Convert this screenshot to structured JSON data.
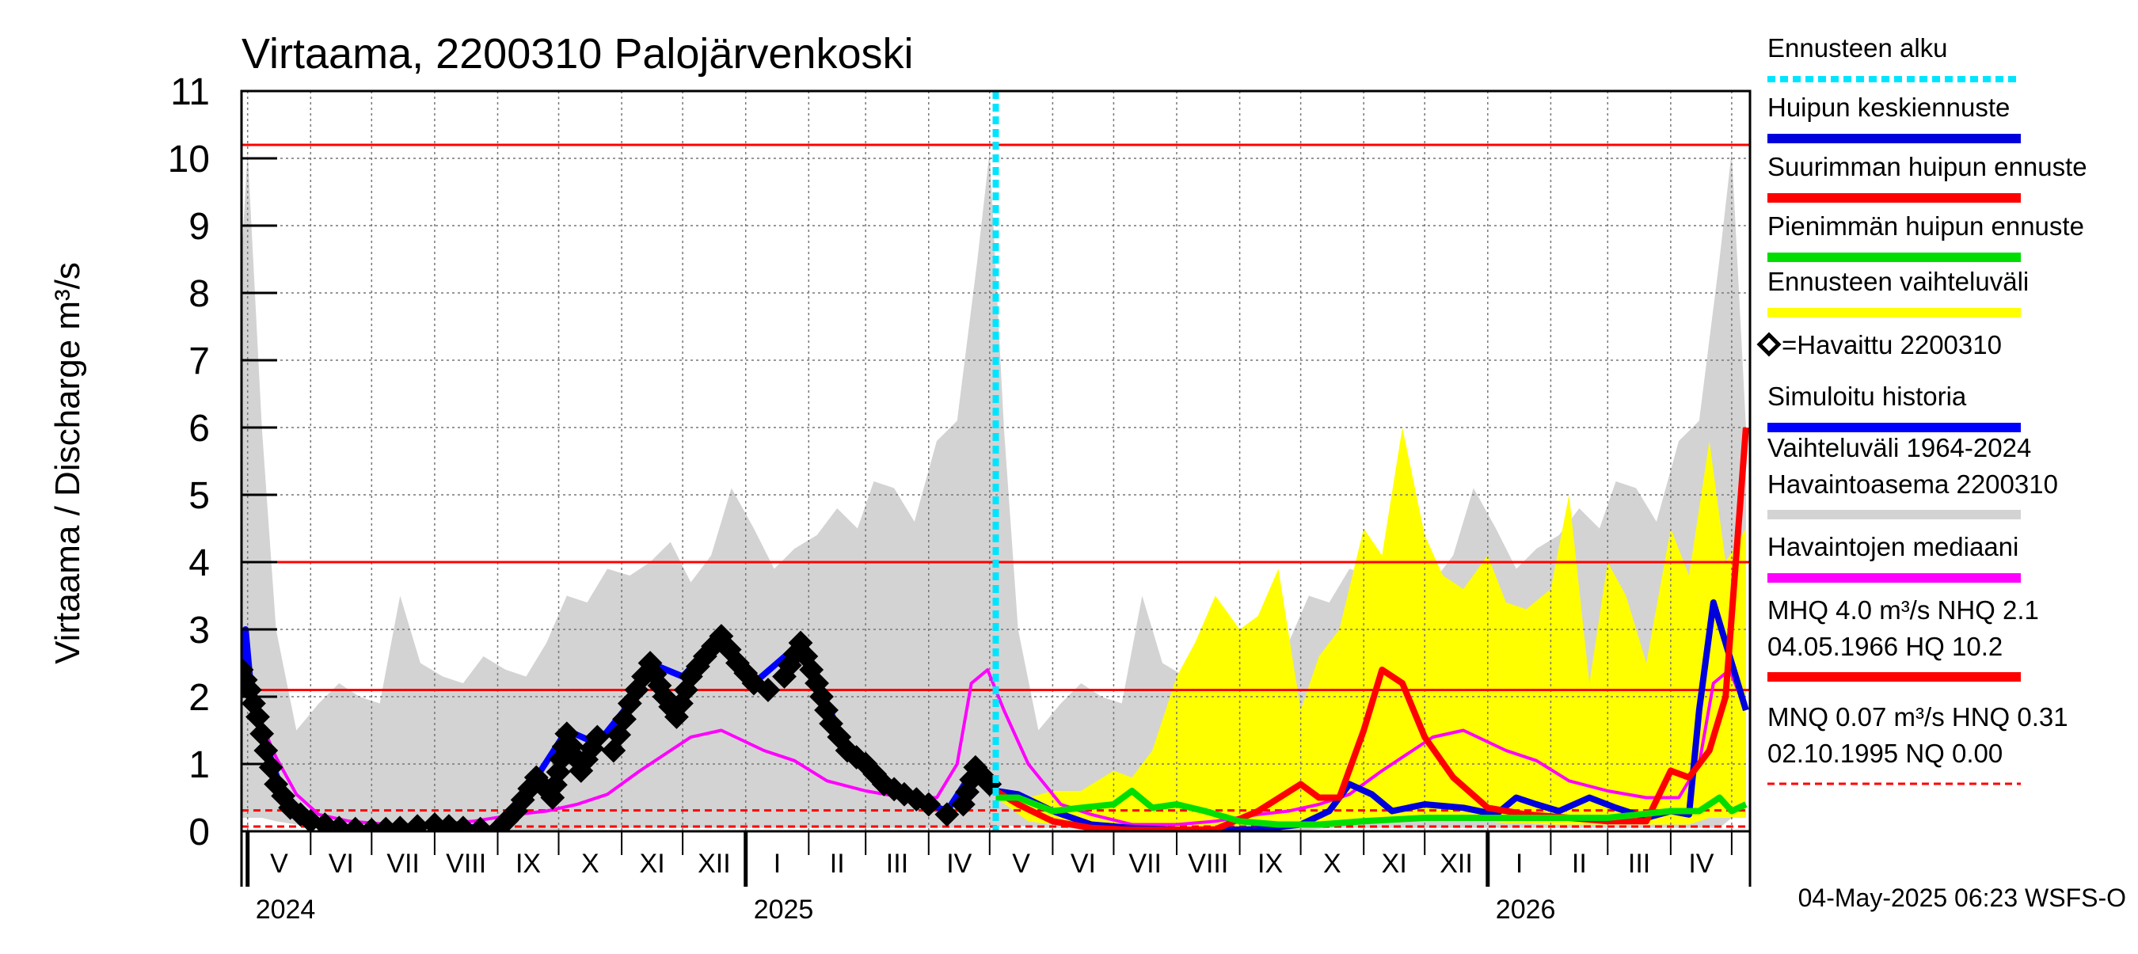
{
  "chart_data": {
    "type": "line",
    "title": "Virtaama, 2200310 Palojärvenkoski",
    "ylabel": "Virtaama / Discharge    m³/s",
    "ylim": [
      0,
      11
    ],
    "yticks": [
      0,
      1,
      2,
      3,
      4,
      5,
      6,
      7,
      8,
      9,
      10,
      11
    ],
    "xlim": [
      "2024-04-28",
      "2026-05-10"
    ],
    "grid": true,
    "months": [
      "V",
      "VI",
      "VII",
      "VIII",
      "IX",
      "X",
      "XI",
      "XII",
      "I",
      "II",
      "III",
      "IV",
      "V",
      "VI",
      "VII",
      "VIII",
      "IX",
      "X",
      "XI",
      "XII",
      "I",
      "II",
      "III",
      "IV"
    ],
    "month_starts": [
      "2024-05-01",
      "2024-06-01",
      "2024-07-01",
      "2024-08-01",
      "2024-09-01",
      "2024-10-01",
      "2024-11-01",
      "2024-12-01",
      "2025-01-01",
      "2025-02-01",
      "2025-03-01",
      "2025-04-01",
      "2025-05-01",
      "2025-06-01",
      "2025-07-01",
      "2025-08-01",
      "2025-09-01",
      "2025-10-01",
      "2025-11-01",
      "2025-12-01",
      "2026-01-01",
      "2026-02-01",
      "2026-03-01",
      "2026-04-01",
      "2026-05-01"
    ],
    "years": [
      {
        "label": "2024",
        "date": "2024-05-01"
      },
      {
        "label": "2025",
        "date": "2025-01-01"
      },
      {
        "label": "2026",
        "date": "2026-01-01"
      }
    ],
    "forecast_start": "2025-05-04",
    "reference_lines": [
      {
        "name": "HQ",
        "value": 10.2,
        "style": "solid"
      },
      {
        "name": "MHQ",
        "value": 4.0,
        "style": "solid"
      },
      {
        "name": "NHQ",
        "value": 2.1,
        "style": "solid"
      },
      {
        "name": "HNQ",
        "value": 0.31,
        "style": "dashed"
      },
      {
        "name": "MNQ",
        "value": 0.07,
        "style": "dashed"
      },
      {
        "name": "NQ",
        "value": 0.0,
        "style": "dashed"
      }
    ],
    "series": [
      {
        "name": "Vaihteluväli 1964-2024 Havaintoasema 2200310",
        "kind": "band",
        "color": "#d3d3d3",
        "x": [
          "2024-04-28",
          "2024-05-01",
          "2024-05-08",
          "2024-05-15",
          "2024-05-25",
          "2024-06-05",
          "2024-06-15",
          "2024-06-25",
          "2024-07-05",
          "2024-07-15",
          "2024-07-25",
          "2024-08-05",
          "2024-08-15",
          "2024-08-25",
          "2024-09-05",
          "2024-09-15",
          "2024-09-25",
          "2024-10-05",
          "2024-10-15",
          "2024-10-25",
          "2024-11-05",
          "2024-11-15",
          "2024-11-25",
          "2024-12-05",
          "2024-12-15",
          "2024-12-25",
          "2025-01-05",
          "2025-01-15",
          "2025-01-25",
          "2025-02-05",
          "2025-02-15",
          "2025-02-25",
          "2025-03-05",
          "2025-03-15",
          "2025-03-25",
          "2025-04-05",
          "2025-04-15",
          "2025-04-25",
          "2025-05-01",
          "2025-05-08",
          "2025-05-15",
          "2025-05-25",
          "2025-06-05",
          "2025-06-15",
          "2025-06-25",
          "2025-07-05",
          "2025-07-15",
          "2025-07-25",
          "2025-08-05",
          "2025-08-15",
          "2025-08-25",
          "2025-09-05",
          "2025-09-15",
          "2025-09-25",
          "2025-10-05",
          "2025-10-15",
          "2025-10-25",
          "2025-11-05",
          "2025-11-15",
          "2025-11-25",
          "2025-12-05",
          "2025-12-15",
          "2025-12-25",
          "2026-01-05",
          "2026-01-15",
          "2026-01-25",
          "2026-02-05",
          "2026-02-15",
          "2026-02-25",
          "2026-03-05",
          "2026-03-15",
          "2026-03-25",
          "2026-04-05",
          "2026-04-15",
          "2026-04-25",
          "2026-05-01",
          "2026-05-08"
        ],
        "low": [
          0.2,
          0.2,
          0.2,
          0.15,
          0.1,
          0.05,
          0.03,
          0.02,
          0.0,
          0.0,
          0.0,
          0.0,
          0.0,
          0.0,
          0.0,
          0.0,
          0.02,
          0.02,
          0.05,
          0.05,
          0.05,
          0.05,
          0.05,
          0.05,
          0.05,
          0.05,
          0.05,
          0.05,
          0.05,
          0.05,
          0.05,
          0.05,
          0.05,
          0.05,
          0.05,
          0.05,
          0.05,
          0.05,
          0.05,
          0.08,
          0.08,
          0.05,
          0.05,
          0.03,
          0.03,
          0.02,
          0.0,
          0.0,
          0.0,
          0.0,
          0.0,
          0.0,
          0.02,
          0.02,
          0.02,
          0.05,
          0.05,
          0.05,
          0.05,
          0.05,
          0.05,
          0.05,
          0.05,
          0.05,
          0.05,
          0.05,
          0.05,
          0.05,
          0.05,
          0.05,
          0.05,
          0.05,
          0.05,
          0.05,
          0.05,
          0.2,
          0.2
        ],
        "high": [
          8.5,
          10.1,
          6.0,
          3.0,
          1.5,
          1.9,
          2.2,
          2.0,
          1.9,
          3.5,
          2.5,
          2.3,
          2.2,
          2.6,
          2.4,
          2.3,
          2.8,
          3.5,
          3.4,
          3.9,
          3.8,
          4.0,
          4.3,
          3.7,
          4.1,
          5.1,
          4.5,
          3.9,
          4.2,
          4.4,
          4.8,
          4.5,
          5.2,
          5.1,
          4.6,
          5.8,
          6.1,
          8.5,
          10.1,
          6.0,
          3.0,
          1.5,
          1.9,
          2.2,
          2.0,
          1.9,
          3.5,
          2.5,
          2.3,
          2.2,
          2.6,
          2.4,
          2.3,
          2.8,
          3.5,
          3.4,
          3.9,
          3.8,
          4.0,
          4.3,
          3.7,
          4.1,
          5.1,
          4.5,
          3.9,
          4.2,
          4.4,
          4.8,
          4.5,
          5.2,
          5.1,
          4.6,
          5.8,
          6.1,
          8.5,
          10.1,
          6.0
        ]
      },
      {
        "name": "Ennusteen vaihteluväli",
        "kind": "band",
        "color": "#ffff00",
        "x": [
          "2025-05-04",
          "2025-05-20",
          "2025-06-01",
          "2025-06-15",
          "2025-07-01",
          "2025-07-10",
          "2025-07-20",
          "2025-08-01",
          "2025-08-10",
          "2025-08-20",
          "2025-09-01",
          "2025-09-10",
          "2025-09-20",
          "2025-10-01",
          "2025-10-10",
          "2025-10-20",
          "2025-11-01",
          "2025-11-10",
          "2025-11-20",
          "2025-12-01",
          "2025-12-10",
          "2025-12-20",
          "2026-01-01",
          "2026-01-10",
          "2026-01-20",
          "2026-02-01",
          "2026-02-10",
          "2026-02-20",
          "2026-03-01",
          "2026-03-10",
          "2026-03-20",
          "2026-04-01",
          "2026-04-10",
          "2026-04-20",
          "2026-04-28",
          "2026-05-08"
        ],
        "low": [
          0.5,
          0.15,
          0.1,
          0.1,
          0.05,
          0.05,
          0.05,
          0.02,
          0.02,
          0.02,
          0.02,
          0.02,
          0.02,
          0.05,
          0.1,
          0.1,
          0.15,
          0.15,
          0.15,
          0.15,
          0.15,
          0.15,
          0.15,
          0.12,
          0.12,
          0.1,
          0.1,
          0.1,
          0.1,
          0.1,
          0.1,
          0.1,
          0.1,
          0.2,
          0.2,
          0.2
        ],
        "high": [
          0.6,
          0.5,
          0.6,
          0.6,
          0.9,
          0.8,
          1.2,
          2.3,
          2.8,
          3.5,
          3.0,
          3.2,
          3.9,
          1.8,
          2.6,
          3.0,
          4.5,
          4.1,
          6.0,
          4.4,
          3.8,
          3.6,
          4.1,
          3.4,
          3.3,
          3.6,
          5.0,
          2.2,
          4.0,
          3.5,
          2.5,
          4.5,
          3.8,
          5.8,
          4.0,
          4.5
        ]
      },
      {
        "name": "Havaintojen mediaani",
        "kind": "line",
        "color": "#ff00ff",
        "x": [
          "2024-04-28",
          "2024-05-05",
          "2024-05-15",
          "2024-05-25",
          "2024-06-05",
          "2024-06-20",
          "2024-07-10",
          "2024-08-01",
          "2024-08-20",
          "2024-09-10",
          "2024-09-25",
          "2024-10-10",
          "2024-10-25",
          "2024-11-10",
          "2024-11-25",
          "2024-12-05",
          "2024-12-20",
          "2025-01-10",
          "2025-01-25",
          "2025-02-10",
          "2025-03-01",
          "2025-03-20",
          "2025-04-05",
          "2025-04-15",
          "2025-04-22",
          "2025-04-30",
          "2025-05-08",
          "2025-05-20",
          "2025-06-05",
          "2025-06-20",
          "2025-07-10",
          "2025-08-01",
          "2025-08-20",
          "2025-09-10",
          "2025-09-25",
          "2025-10-10",
          "2025-10-25",
          "2025-11-10",
          "2025-11-25",
          "2025-12-05",
          "2025-12-20",
          "2026-01-10",
          "2026-01-25",
          "2026-02-10",
          "2026-03-01",
          "2026-03-20",
          "2026-04-05",
          "2026-04-15",
          "2026-04-22",
          "2026-04-30",
          "2026-05-08"
        ],
        "y": [
          2.2,
          1.8,
          1.1,
          0.55,
          0.25,
          0.15,
          0.1,
          0.1,
          0.15,
          0.25,
          0.3,
          0.4,
          0.55,
          0.9,
          1.2,
          1.4,
          1.5,
          1.2,
          1.05,
          0.75,
          0.6,
          0.5,
          0.5,
          1.0,
          2.2,
          2.4,
          1.8,
          1.0,
          0.4,
          0.25,
          0.1,
          0.1,
          0.15,
          0.25,
          0.3,
          0.4,
          0.55,
          0.9,
          1.2,
          1.4,
          1.5,
          1.2,
          1.05,
          0.75,
          0.6,
          0.5,
          0.5,
          1.0,
          2.2,
          2.4,
          1.8
        ]
      },
      {
        "name": "=Havaittu 2200310",
        "kind": "markers",
        "color": "#000000",
        "x": [
          "2024-04-28",
          "2024-05-02",
          "2024-05-06",
          "2024-05-10",
          "2024-05-15",
          "2024-05-22",
          "2024-06-01",
          "2024-06-15",
          "2024-07-01",
          "2024-07-15",
          "2024-08-01",
          "2024-08-15",
          "2024-09-01",
          "2024-09-10",
          "2024-09-20",
          "2024-09-28",
          "2024-10-05",
          "2024-10-12",
          "2024-10-20",
          "2024-10-28",
          "2024-11-05",
          "2024-11-15",
          "2024-11-22",
          "2024-11-28",
          "2024-12-05",
          "2024-12-12",
          "2024-12-20",
          "2024-12-28",
          "2025-01-05",
          "2025-01-12",
          "2025-01-20",
          "2025-01-28",
          "2025-02-05",
          "2025-02-12",
          "2025-02-20",
          "2025-03-01",
          "2025-03-10",
          "2025-03-20",
          "2025-04-01",
          "2025-04-10",
          "2025-04-18",
          "2025-04-24",
          "2025-05-01"
        ],
        "y": [
          2.4,
          2.1,
          1.7,
          1.2,
          0.7,
          0.35,
          0.15,
          0.05,
          0.02,
          0.05,
          0.1,
          0.05,
          0.02,
          0.3,
          0.8,
          0.5,
          1.45,
          0.9,
          1.4,
          1.2,
          1.9,
          2.5,
          2.0,
          1.7,
          2.3,
          2.6,
          2.9,
          2.5,
          2.2,
          2.1,
          2.3,
          2.8,
          2.2,
          1.6,
          1.2,
          1.0,
          0.7,
          0.55,
          0.4,
          0.25,
          0.4,
          0.95,
          0.7
        ]
      },
      {
        "name": "Simuloitu historia",
        "kind": "line",
        "color": "#0000ff",
        "x": [
          "2024-04-28",
          "2024-04-30",
          "2024-05-03",
          "2024-05-10",
          "2024-05-20",
          "2024-06-01",
          "2024-07-01",
          "2024-08-01",
          "2024-09-01",
          "2024-09-20",
          "2024-10-05",
          "2024-10-20",
          "2024-11-05",
          "2024-11-15",
          "2024-12-01",
          "2024-12-20",
          "2025-01-05",
          "2025-01-28",
          "2025-02-20",
          "2025-03-20",
          "2025-04-10",
          "2025-04-24",
          "2025-05-04"
        ],
        "y": [
          2.4,
          3.0,
          2.0,
          1.3,
          0.4,
          0.12,
          0.02,
          0.1,
          0.03,
          0.8,
          1.5,
          1.3,
          1.9,
          2.5,
          2.3,
          2.9,
          2.2,
          2.8,
          1.2,
          0.55,
          0.3,
          0.95,
          0.7
        ]
      },
      {
        "name": "Huipun keskiennuste",
        "kind": "line",
        "color": "#0000dd",
        "x": [
          "2025-05-04",
          "2025-05-15",
          "2025-06-01",
          "2025-06-20",
          "2025-07-10",
          "2025-08-01",
          "2025-08-20",
          "2025-09-10",
          "2025-10-01",
          "2025-10-15",
          "2025-10-25",
          "2025-11-05",
          "2025-11-15",
          "2025-12-01",
          "2025-12-20",
          "2026-01-05",
          "2026-01-15",
          "2026-01-25",
          "2026-02-05",
          "2026-02-20",
          "2026-03-05",
          "2026-03-20",
          "2026-04-01",
          "2026-04-10",
          "2026-04-15",
          "2026-04-22",
          "2026-04-28",
          "2026-05-08"
        ],
        "y": [
          0.6,
          0.55,
          0.3,
          0.1,
          0.05,
          0.02,
          0.02,
          0.03,
          0.1,
          0.3,
          0.7,
          0.55,
          0.3,
          0.4,
          0.35,
          0.25,
          0.5,
          0.4,
          0.3,
          0.5,
          0.35,
          0.2,
          0.3,
          0.25,
          1.8,
          3.4,
          2.8,
          1.8
        ]
      },
      {
        "name": "Suurimman huipun ennuste",
        "kind": "line",
        "color": "#ff0000",
        "x": [
          "2025-05-04",
          "2025-05-15",
          "2025-06-01",
          "2025-06-20",
          "2025-07-10",
          "2025-08-01",
          "2025-08-20",
          "2025-09-10",
          "2025-10-01",
          "2025-10-10",
          "2025-10-20",
          "2025-11-01",
          "2025-11-10",
          "2025-11-20",
          "2025-12-01",
          "2025-12-15",
          "2026-01-01",
          "2026-01-20",
          "2026-02-10",
          "2026-03-01",
          "2026-03-20",
          "2026-04-01",
          "2026-04-10",
          "2026-04-20",
          "2026-04-28",
          "2026-05-08"
        ],
        "y": [
          0.6,
          0.4,
          0.15,
          0.05,
          0.02,
          0.02,
          0.03,
          0.3,
          0.7,
          0.5,
          0.5,
          1.5,
          2.4,
          2.2,
          1.4,
          0.8,
          0.35,
          0.25,
          0.2,
          0.15,
          0.15,
          0.9,
          0.8,
          1.2,
          2.0,
          6.0
        ]
      },
      {
        "name": "Pienimmän huipun ennuste",
        "kind": "line",
        "color": "#00dd00",
        "x": [
          "2025-05-04",
          "2025-05-15",
          "2025-06-01",
          "2025-06-15",
          "2025-07-01",
          "2025-07-10",
          "2025-07-20",
          "2025-08-01",
          "2025-08-15",
          "2025-09-01",
          "2025-09-20",
          "2025-10-10",
          "2025-11-01",
          "2025-12-01",
          "2026-01-01",
          "2026-02-01",
          "2026-03-01",
          "2026-04-01",
          "2026-04-15",
          "2026-04-25",
          "2026-05-01",
          "2026-05-08"
        ],
        "y": [
          0.5,
          0.5,
          0.3,
          0.35,
          0.4,
          0.6,
          0.35,
          0.4,
          0.3,
          0.15,
          0.1,
          0.1,
          0.15,
          0.2,
          0.2,
          0.2,
          0.2,
          0.3,
          0.3,
          0.5,
          0.3,
          0.4
        ]
      }
    ],
    "legend": [
      {
        "label": "Ennusteen alku",
        "color": "#00e5ff",
        "style": "dotted"
      },
      {
        "label": "Huipun keskiennuste",
        "color": "#0000dd",
        "style": "solid"
      },
      {
        "label": "Suurimman huipun ennuste",
        "color": "#ff0000",
        "style": "solid"
      },
      {
        "label": "Pienimmän huipun ennuste",
        "color": "#00dd00",
        "style": "solid"
      },
      {
        "label": "Ennusteen vaihteluväli",
        "color": "#ffff00",
        "style": "solid"
      },
      {
        "label": "=Havaittu 2200310",
        "color": "#000000",
        "style": "marker"
      },
      {
        "label": "Simuloitu historia",
        "color": "#0000ff",
        "style": "solid"
      },
      {
        "label": "Vaihteluväli 1964-2024",
        "label2": " Havaintoasema 2200310",
        "color": "#d3d3d3",
        "style": "solid"
      },
      {
        "label": "Havaintojen mediaani",
        "color": "#ff00ff",
        "style": "solid"
      },
      {
        "label": "MHQ  4.0 m³/s NHQ  2.1",
        "label2": "04.05.1966 HQ 10.2",
        "color": "#ff0000",
        "style": "solid"
      },
      {
        "label": "MNQ 0.07 m³/s HNQ 0.31",
        "label2": "02.10.1995 NQ 0.00",
        "color": "#ff0000",
        "style": "dashed"
      }
    ],
    "legend_position": "right"
  },
  "footer": "04-May-2025 06:23 WSFS-O"
}
